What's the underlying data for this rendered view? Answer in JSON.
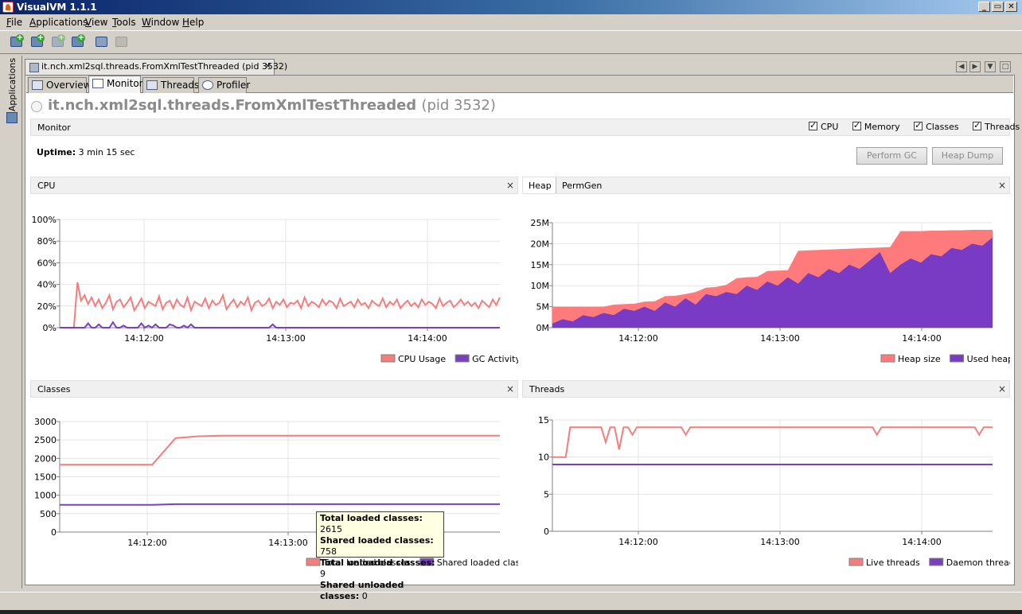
{
  "window": {
    "title": "VisualVM 1.1.1",
    "buttons": [
      "_",
      "▭",
      "✕"
    ]
  },
  "menu": {
    "items": [
      {
        "label": "File",
        "mnemonic": "F",
        "rest": "ile"
      },
      {
        "label": "Applications",
        "mnemonic": "A",
        "rest": "pplications"
      },
      {
        "label": "View",
        "mnemonic": "V",
        "rest": "iew"
      },
      {
        "label": "Tools",
        "mnemonic": "T",
        "rest": "ools"
      },
      {
        "label": "Window",
        "mnemonic": "W",
        "rest": "indow"
      },
      {
        "label": "Help",
        "mnemonic": "H",
        "rest": "elp"
      }
    ]
  },
  "toolbar": {
    "buttons": [
      "add-jdbc-icon",
      "add-jmx-icon",
      "add-remote-host-icon",
      "add-snapshot-icon",
      "save-icon",
      "load-icon"
    ]
  },
  "sidebar": {
    "label": "Applications"
  },
  "doc_tab": {
    "label": "it.nch.xml2sql.threads.FromXmlTestThreaded (pid 3532)",
    "close": "×"
  },
  "subtabs": [
    {
      "label": "Overview"
    },
    {
      "label": "Monitor"
    },
    {
      "label": "Threads"
    },
    {
      "label": "Profiler"
    }
  ],
  "process": {
    "name": "it.nch.xml2sql.threads.FromXmlTestThreaded",
    "pid": "(pid 3532)"
  },
  "monitor": {
    "label": "Monitor",
    "checkboxes": [
      {
        "label": "CPU",
        "checked": true
      },
      {
        "label": "Memory",
        "checked": true
      },
      {
        "label": "Classes",
        "checked": true
      },
      {
        "label": "Threads",
        "checked": true
      }
    ],
    "uptime_label": "Uptime:",
    "uptime_value": "3 min 15 sec",
    "perform_gc": "Perform GC",
    "heap_dump": "Heap Dump"
  },
  "panels": {
    "cpu": {
      "title": "CPU",
      "close": "×"
    },
    "heap": {
      "tab_active": "Heap",
      "tab_other": "PermGen",
      "close": "×"
    },
    "classes": {
      "title": "Classes",
      "close": "×"
    },
    "threads": {
      "title": "Threads",
      "close": "×"
    }
  },
  "tooltip": {
    "lines": [
      {
        "label": "Total loaded classes:",
        "value": "2615"
      },
      {
        "label": "Shared loaded classes:",
        "value": "758"
      },
      {
        "label": "Total unloaded classes:",
        "value": "9"
      },
      {
        "label": "Shared unloaded classes:",
        "value": "0"
      }
    ]
  },
  "colors": {
    "series_a": "#f47d7d",
    "series_b": "#7a40c0",
    "heap_fill": "#ff7b7b",
    "used_fill": "#7a3bc4"
  },
  "chart_data": [
    {
      "id": "cpu",
      "type": "line",
      "x_ticks": [
        "14:12:00",
        "14:13:00",
        "14:14:00"
      ],
      "y_ticks": [
        "0%",
        "20%",
        "40%",
        "60%",
        "80%",
        "100%"
      ],
      "ylim": [
        0,
        100
      ],
      "series": [
        {
          "name": "CPU Usage",
          "values": [
            0,
            0,
            0,
            0,
            0,
            42,
            25,
            30,
            22,
            28,
            20,
            26,
            18,
            23,
            30,
            17,
            24,
            26,
            19,
            23,
            28,
            16,
            21,
            27,
            18,
            24,
            22,
            20,
            29,
            17,
            23,
            25,
            18,
            26,
            21,
            19,
            28,
            16,
            24,
            22,
            20,
            27,
            18,
            25,
            21,
            23,
            30,
            17,
            22,
            26,
            19,
            24,
            21,
            28,
            16,
            23,
            25,
            20,
            22,
            27,
            18,
            24,
            21,
            26,
            19,
            23,
            22,
            25,
            18,
            28,
            20,
            24,
            22,
            19,
            26,
            21,
            25,
            23,
            18,
            27,
            20,
            22,
            24,
            19,
            26,
            21,
            23,
            18,
            25,
            22,
            20,
            27,
            19,
            24,
            21,
            26,
            18,
            22,
            25,
            20,
            23,
            19,
            26,
            21,
            24,
            22,
            18,
            27,
            20,
            23,
            25,
            19,
            22,
            26,
            21,
            24,
            20,
            23,
            18,
            25,
            22,
            19,
            26,
            21,
            28
          ]
        },
        {
          "name": "GC Activity",
          "values": [
            0,
            0,
            0,
            0,
            0,
            0,
            0,
            0,
            4,
            0,
            0,
            3,
            0,
            0,
            0,
            5,
            0,
            0,
            2,
            0,
            0,
            0,
            0,
            4,
            0,
            2,
            0,
            3,
            0,
            0,
            0,
            3,
            2,
            0,
            0,
            2,
            0,
            3,
            0,
            0,
            0,
            0,
            0,
            0,
            0,
            0,
            0,
            0,
            0,
            0,
            0,
            0,
            0,
            0,
            0,
            0,
            0,
            0,
            0,
            0,
            3,
            0,
            0,
            0,
            0,
            0,
            0,
            0,
            0,
            0,
            0,
            0,
            0,
            0,
            0,
            0,
            0,
            0,
            0,
            0,
            0,
            0,
            0,
            0,
            0,
            0,
            0,
            0,
            0,
            0,
            0,
            0,
            0,
            0,
            0,
            0,
            0,
            0,
            0,
            0,
            0,
            0,
            0,
            0,
            0,
            0,
            0,
            0,
            0,
            0,
            0,
            0,
            0,
            0,
            0,
            0,
            0,
            0,
            0,
            0,
            0,
            0,
            0,
            0,
            0
          ]
        }
      ]
    },
    {
      "id": "heap",
      "type": "area",
      "x_ticks": [
        "14:12:00",
        "14:13:00",
        "14:14:00"
      ],
      "y_ticks": [
        "0M",
        "5M",
        "10M",
        "15M",
        "20M",
        "25M"
      ],
      "ylim": [
        0,
        25
      ],
      "series": [
        {
          "name": "Heap size",
          "values": [
            5,
            5,
            5,
            5,
            5,
            5,
            5.5,
            5.6,
            5.7,
            6.2,
            6.3,
            7.5,
            7.6,
            8,
            8.5,
            9.5,
            9.7,
            10.2,
            11.8,
            12,
            12.1,
            13.5,
            13.6,
            13.7,
            18.3,
            18.4,
            18.5,
            18.6,
            18.7,
            18.8,
            18.9,
            19,
            19.1,
            19.2,
            23,
            23,
            23,
            23.1,
            23.1,
            23.2,
            23.2,
            23.3,
            23.3,
            23.3
          ]
        },
        {
          "name": "Used heap",
          "values": [
            1,
            2,
            1.5,
            3,
            2.5,
            3.5,
            3,
            4.5,
            4,
            5,
            4,
            6,
            5,
            7,
            5.5,
            8,
            7.5,
            8.5,
            8,
            10,
            9,
            11,
            10,
            12,
            10.5,
            13,
            12,
            14,
            13,
            15,
            14,
            16,
            18,
            13,
            15,
            16.5,
            15.5,
            17.5,
            17,
            19,
            18.5,
            20,
            19.5,
            21.5
          ]
        }
      ]
    },
    {
      "id": "classes",
      "type": "line",
      "x_ticks": [
        "14:12:00",
        "14:13:00"
      ],
      "y_ticks": [
        "0",
        "500",
        "1000",
        "1500",
        "2000",
        "2500",
        "3000"
      ],
      "ylim": [
        0,
        3000
      ],
      "series": [
        {
          "name": "Total loaded classes",
          "values": [
            1830,
            1830,
            1830,
            1830,
            1830,
            2550,
            2600,
            2615,
            2615,
            2615,
            2615,
            2615,
            2615,
            2615,
            2615,
            2615,
            2615,
            2615,
            2615,
            2615
          ]
        },
        {
          "name": "Shared loaded classes",
          "values": [
            740,
            740,
            740,
            740,
            740,
            758,
            758,
            758,
            758,
            758,
            758,
            758,
            758,
            758,
            758,
            758,
            758,
            758,
            758,
            758
          ]
        }
      ]
    },
    {
      "id": "threads",
      "type": "line",
      "x_ticks": [
        "14:12:00",
        "14:13:00",
        "14:14:00"
      ],
      "y_ticks": [
        "0",
        "5",
        "10",
        "15"
      ],
      "ylim": [
        0,
        15
      ],
      "series": [
        {
          "name": "Live threads",
          "values": [
            10,
            10,
            10,
            10,
            14,
            14,
            14,
            14,
            14,
            14,
            14,
            14,
            12,
            14,
            14,
            11,
            14,
            14,
            13,
            14,
            14,
            14,
            14,
            14,
            14,
            14,
            14,
            14,
            14,
            14,
            13,
            14,
            14,
            14,
            14,
            14,
            14,
            14,
            14,
            14,
            14,
            14,
            14,
            14,
            14,
            14,
            14,
            14,
            14,
            14,
            14,
            14,
            14,
            14,
            14,
            14,
            14,
            14,
            14,
            14,
            14,
            14,
            14,
            14,
            14,
            14,
            14,
            14,
            14,
            14,
            14,
            14,
            14,
            13,
            14,
            14,
            14,
            14,
            14,
            14,
            14,
            14,
            14,
            14,
            14,
            14,
            14,
            14,
            14,
            14,
            14,
            14,
            14,
            14,
            14,
            14,
            13,
            14,
            14,
            14
          ]
        },
        {
          "name": "Daemon threads",
          "values": [
            9,
            9,
            9,
            9,
            9,
            9,
            9,
            9,
            9,
            9,
            9,
            9,
            9,
            9,
            9,
            9,
            9,
            9,
            9,
            9
          ]
        }
      ]
    }
  ]
}
